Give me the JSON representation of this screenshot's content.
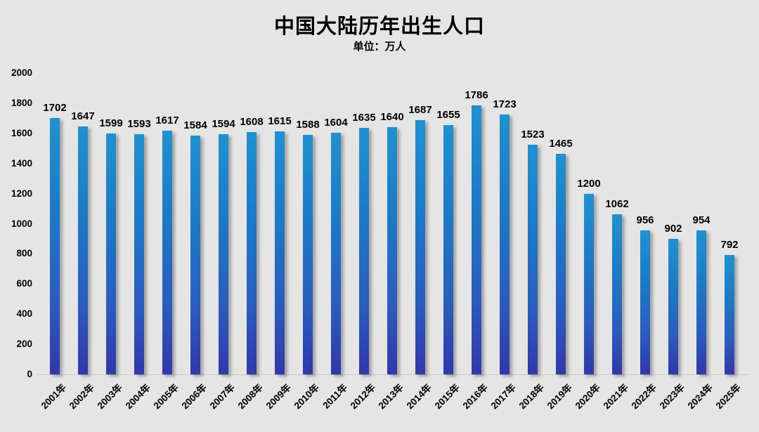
{
  "chart_data": {
    "type": "bar",
    "title": "中国大陆历年出生人口",
    "unit_label": "单位：万人",
    "categories": [
      "2001年",
      "2002年",
      "2003年",
      "2004年",
      "2005年",
      "2006年",
      "2007年",
      "2008年",
      "2009年",
      "2010年",
      "2011年",
      "2012年",
      "2013年",
      "2014年",
      "2015年",
      "2016年",
      "2017年",
      "2018年",
      "2019年",
      "2020年",
      "2021年",
      "2022年",
      "2023年",
      "2024年",
      "2025年"
    ],
    "values": [
      1702,
      1647,
      1599,
      1593,
      1617,
      1584,
      1594,
      1608,
      1615,
      1588,
      1604,
      1635,
      1640,
      1687,
      1655,
      1786,
      1723,
      1523,
      1465,
      1200,
      1062,
      956,
      902,
      954,
      792
    ],
    "xlabel": "",
    "ylabel": "",
    "ylim": [
      0,
      2000
    ],
    "y_ticks": [
      0,
      200,
      400,
      600,
      800,
      1000,
      1200,
      1400,
      1600,
      1800,
      2000
    ],
    "grid": false,
    "legend_position": "none",
    "data_labels": true,
    "colors": {
      "bar_gradient_top": "#2191ce",
      "bar_gradient_bottom": "#3237a8",
      "background": "#e5e5e5",
      "text": "#000000"
    }
  }
}
